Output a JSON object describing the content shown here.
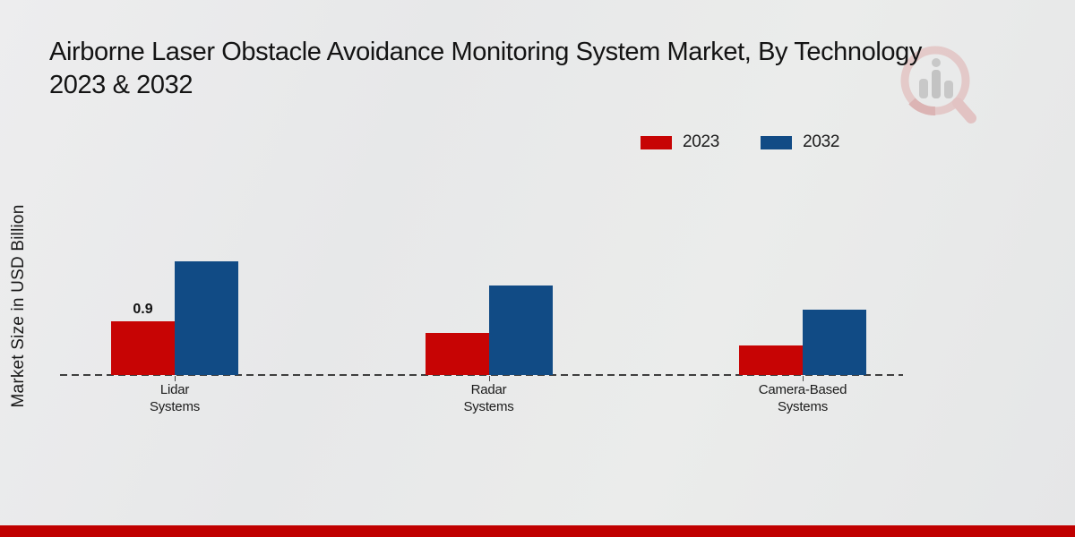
{
  "title": {
    "line1": "Airborne Laser Obstacle Avoidance Monitoring System Market, By Technology",
    "line2": "2023 & 2032"
  },
  "y_axis_label": "Market Size in USD Billion",
  "legend": [
    {
      "label": "2023",
      "color": "#c70404"
    },
    {
      "label": "2032",
      "color": "#114b85"
    }
  ],
  "watermark_icon": "market-research-magnifier-bars-logo",
  "colors": {
    "bar_2023": "#c70404",
    "bar_2032": "#114b85",
    "footer_band": "#c00000",
    "baseline": "#3f3f3f",
    "background": "#e9eaea"
  },
  "chart_data": {
    "type": "bar",
    "title": "Airborne Laser Obstacle Avoidance Monitoring System Market, By Technology 2023 & 2032",
    "xlabel": "",
    "ylabel": "Market Size in USD Billion",
    "categories": [
      "Lidar Systems",
      "Radar Systems",
      "Camera-Based Systems"
    ],
    "category_label_lines": [
      [
        "Lidar",
        "Systems"
      ],
      [
        "Radar",
        "Systems"
      ],
      [
        "Camera-Based",
        "Systems"
      ]
    ],
    "series": [
      {
        "name": "2023",
        "color": "#c70404",
        "values": [
          0.9,
          0.7,
          0.5
        ]
      },
      {
        "name": "2032",
        "color": "#114b85",
        "values": [
          1.9,
          1.5,
          1.1
        ]
      }
    ],
    "shown_value_labels": [
      {
        "series_index": 0,
        "category_index": 0,
        "text": "0.9"
      }
    ],
    "ylim": [
      0,
      2.2
    ],
    "y_axis_ticks_visible": false,
    "grid": false,
    "baseline_style": "dashed",
    "legend_position": "top-right"
  }
}
